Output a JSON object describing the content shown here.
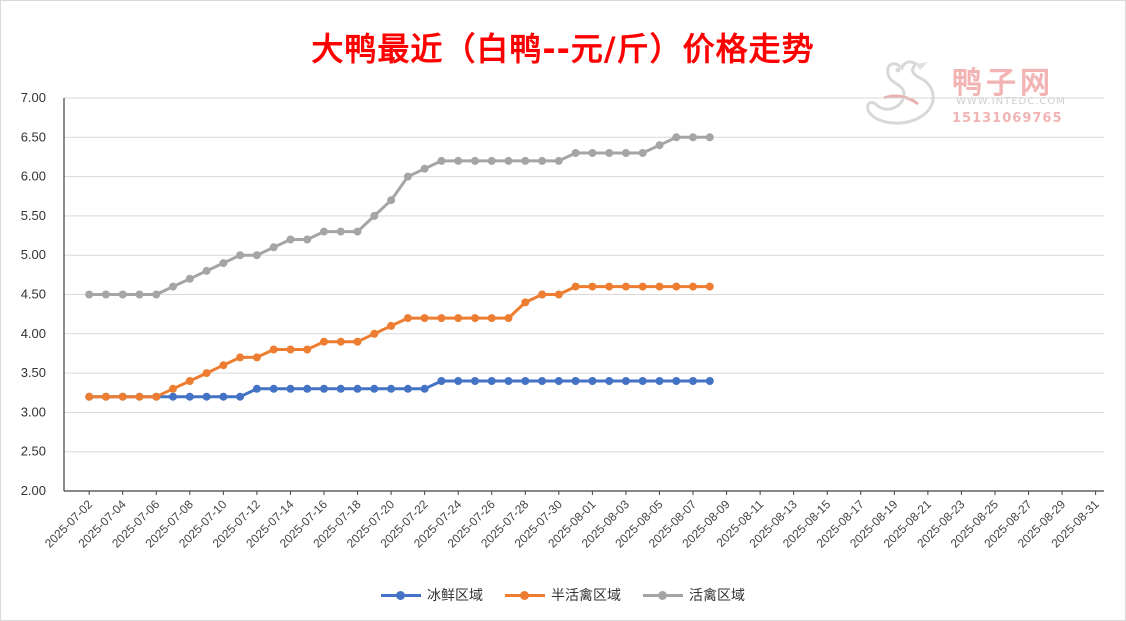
{
  "chart_data": {
    "type": "line",
    "title": "大鸭最近（白鸭--元/斤）价格走势",
    "ylim": [
      2.0,
      7.0
    ],
    "yticks": [
      "7.00",
      "6.50",
      "6.00",
      "5.50",
      "5.00",
      "4.50",
      "4.00",
      "3.50",
      "3.00",
      "2.50",
      "2.00"
    ],
    "grid": true,
    "legend_position": "bottom",
    "x_labels": [
      "2025-07-02",
      "2025-07-04",
      "2025-07-06",
      "2025-07-08",
      "2025-07-10",
      "2025-07-12",
      "2025-07-14",
      "2025-07-16",
      "2025-07-18",
      "2025-07-20",
      "2025-07-22",
      "2025-07-24",
      "2025-07-26",
      "2025-07-28",
      "2025-07-30",
      "2025-08-01",
      "2025-08-03",
      "2025-08-05",
      "2025-08-07",
      "2025-08-09",
      "2025-08-11",
      "2025-08-13",
      "2025-08-15",
      "2025-08-17",
      "2025-08-19",
      "2025-08-21",
      "2025-08-23",
      "2025-08-25",
      "2025-08-27",
      "2025-08-29",
      "2025-08-31"
    ],
    "x": [
      "2025-07-02",
      "2025-07-03",
      "2025-07-04",
      "2025-07-05",
      "2025-07-06",
      "2025-07-07",
      "2025-07-08",
      "2025-07-09",
      "2025-07-10",
      "2025-07-11",
      "2025-07-12",
      "2025-07-13",
      "2025-07-14",
      "2025-07-15",
      "2025-07-16",
      "2025-07-17",
      "2025-07-18",
      "2025-07-19",
      "2025-07-20",
      "2025-07-21",
      "2025-07-22",
      "2025-07-23",
      "2025-07-24",
      "2025-07-25",
      "2025-07-26",
      "2025-07-27",
      "2025-07-28",
      "2025-07-29",
      "2025-07-30",
      "2025-07-31",
      "2025-08-01",
      "2025-08-02",
      "2025-08-03",
      "2025-08-04",
      "2025-08-05",
      "2025-08-06",
      "2025-08-07",
      "2025-08-08"
    ],
    "series": [
      {
        "name": "冰鲜区域",
        "color": "#4472c4",
        "values": [
          3.2,
          3.2,
          3.2,
          3.2,
          3.2,
          3.2,
          3.2,
          3.2,
          3.2,
          3.2,
          3.3,
          3.3,
          3.3,
          3.3,
          3.3,
          3.3,
          3.3,
          3.3,
          3.3,
          3.3,
          3.3,
          3.4,
          3.4,
          3.4,
          3.4,
          3.4,
          3.4,
          3.4,
          3.4,
          3.4,
          3.4,
          3.4,
          3.4,
          3.4,
          3.4,
          3.4,
          3.4,
          3.4
        ]
      },
      {
        "name": "半活禽区域",
        "color": "#ed7d31",
        "values": [
          3.2,
          3.2,
          3.2,
          3.2,
          3.2,
          3.3,
          3.4,
          3.5,
          3.6,
          3.7,
          3.7,
          3.8,
          3.8,
          3.8,
          3.9,
          3.9,
          3.9,
          4.0,
          4.1,
          4.2,
          4.2,
          4.2,
          4.2,
          4.2,
          4.2,
          4.2,
          4.4,
          4.5,
          4.5,
          4.6,
          4.6,
          4.6,
          4.6,
          4.6,
          4.6,
          4.6,
          4.6,
          4.6
        ]
      },
      {
        "name": "活禽区域",
        "color": "#a5a5a5",
        "values": [
          4.5,
          4.5,
          4.5,
          4.5,
          4.5,
          4.6,
          4.7,
          4.8,
          4.9,
          5.0,
          5.0,
          5.1,
          5.2,
          5.2,
          5.3,
          5.3,
          5.3,
          5.5,
          5.7,
          6.0,
          6.1,
          6.2,
          6.2,
          6.2,
          6.2,
          6.2,
          6.2,
          6.2,
          6.2,
          6.3,
          6.3,
          6.3,
          6.3,
          6.3,
          6.4,
          6.5,
          6.5,
          6.5
        ]
      }
    ]
  },
  "watermark": {
    "brand": "鸭子网",
    "url": "WWW.INTEDC.COM",
    "phone": "15131069765"
  }
}
